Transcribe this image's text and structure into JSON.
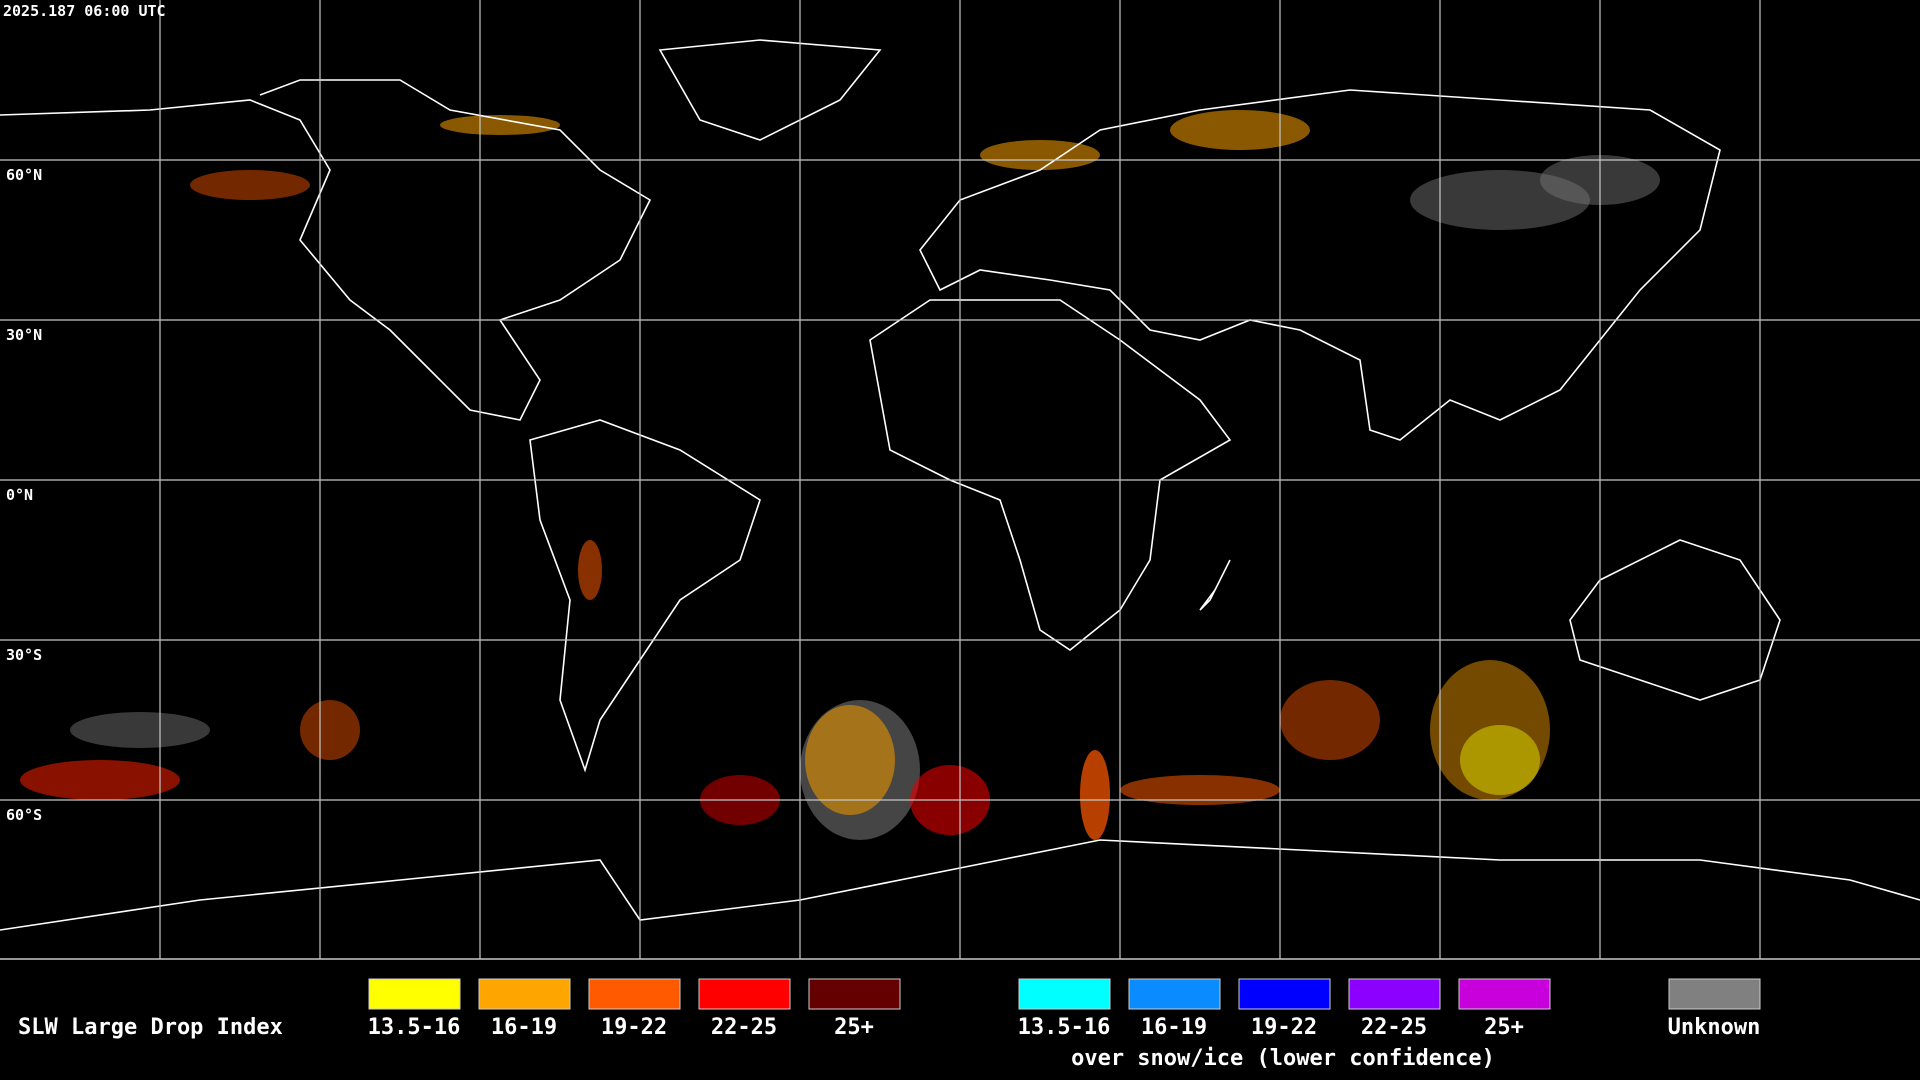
{
  "header": {
    "timestamp": "2025.187 06:00 UTC"
  },
  "map": {
    "lat_labels": [
      "60°N",
      "30°N",
      "0°N",
      "30°S",
      "60°S"
    ]
  },
  "legend": {
    "title": "SLW Large Drop Index",
    "items": [
      {
        "label": "13.5-16",
        "color": "#ffff00"
      },
      {
        "label": "16-19",
        "color": "#ffa500"
      },
      {
        "label": "19-22",
        "color": "#ff5a00"
      },
      {
        "label": "22-25",
        "color": "#ff0000"
      },
      {
        "label": "25+",
        "color": "#640000"
      }
    ],
    "snow_items": [
      {
        "label": "13.5-16",
        "color": "#00ffff"
      },
      {
        "label": "16-19",
        "color": "#0a8cff"
      },
      {
        "label": "19-22",
        "color": "#0000ff"
      },
      {
        "label": "22-25",
        "color": "#8c00ff"
      },
      {
        "label": "25+",
        "color": "#c800dc"
      }
    ],
    "snow_caption": "over snow/ice (lower confidence)",
    "unknown": {
      "label": "Unknown",
      "color": "#808080"
    }
  }
}
